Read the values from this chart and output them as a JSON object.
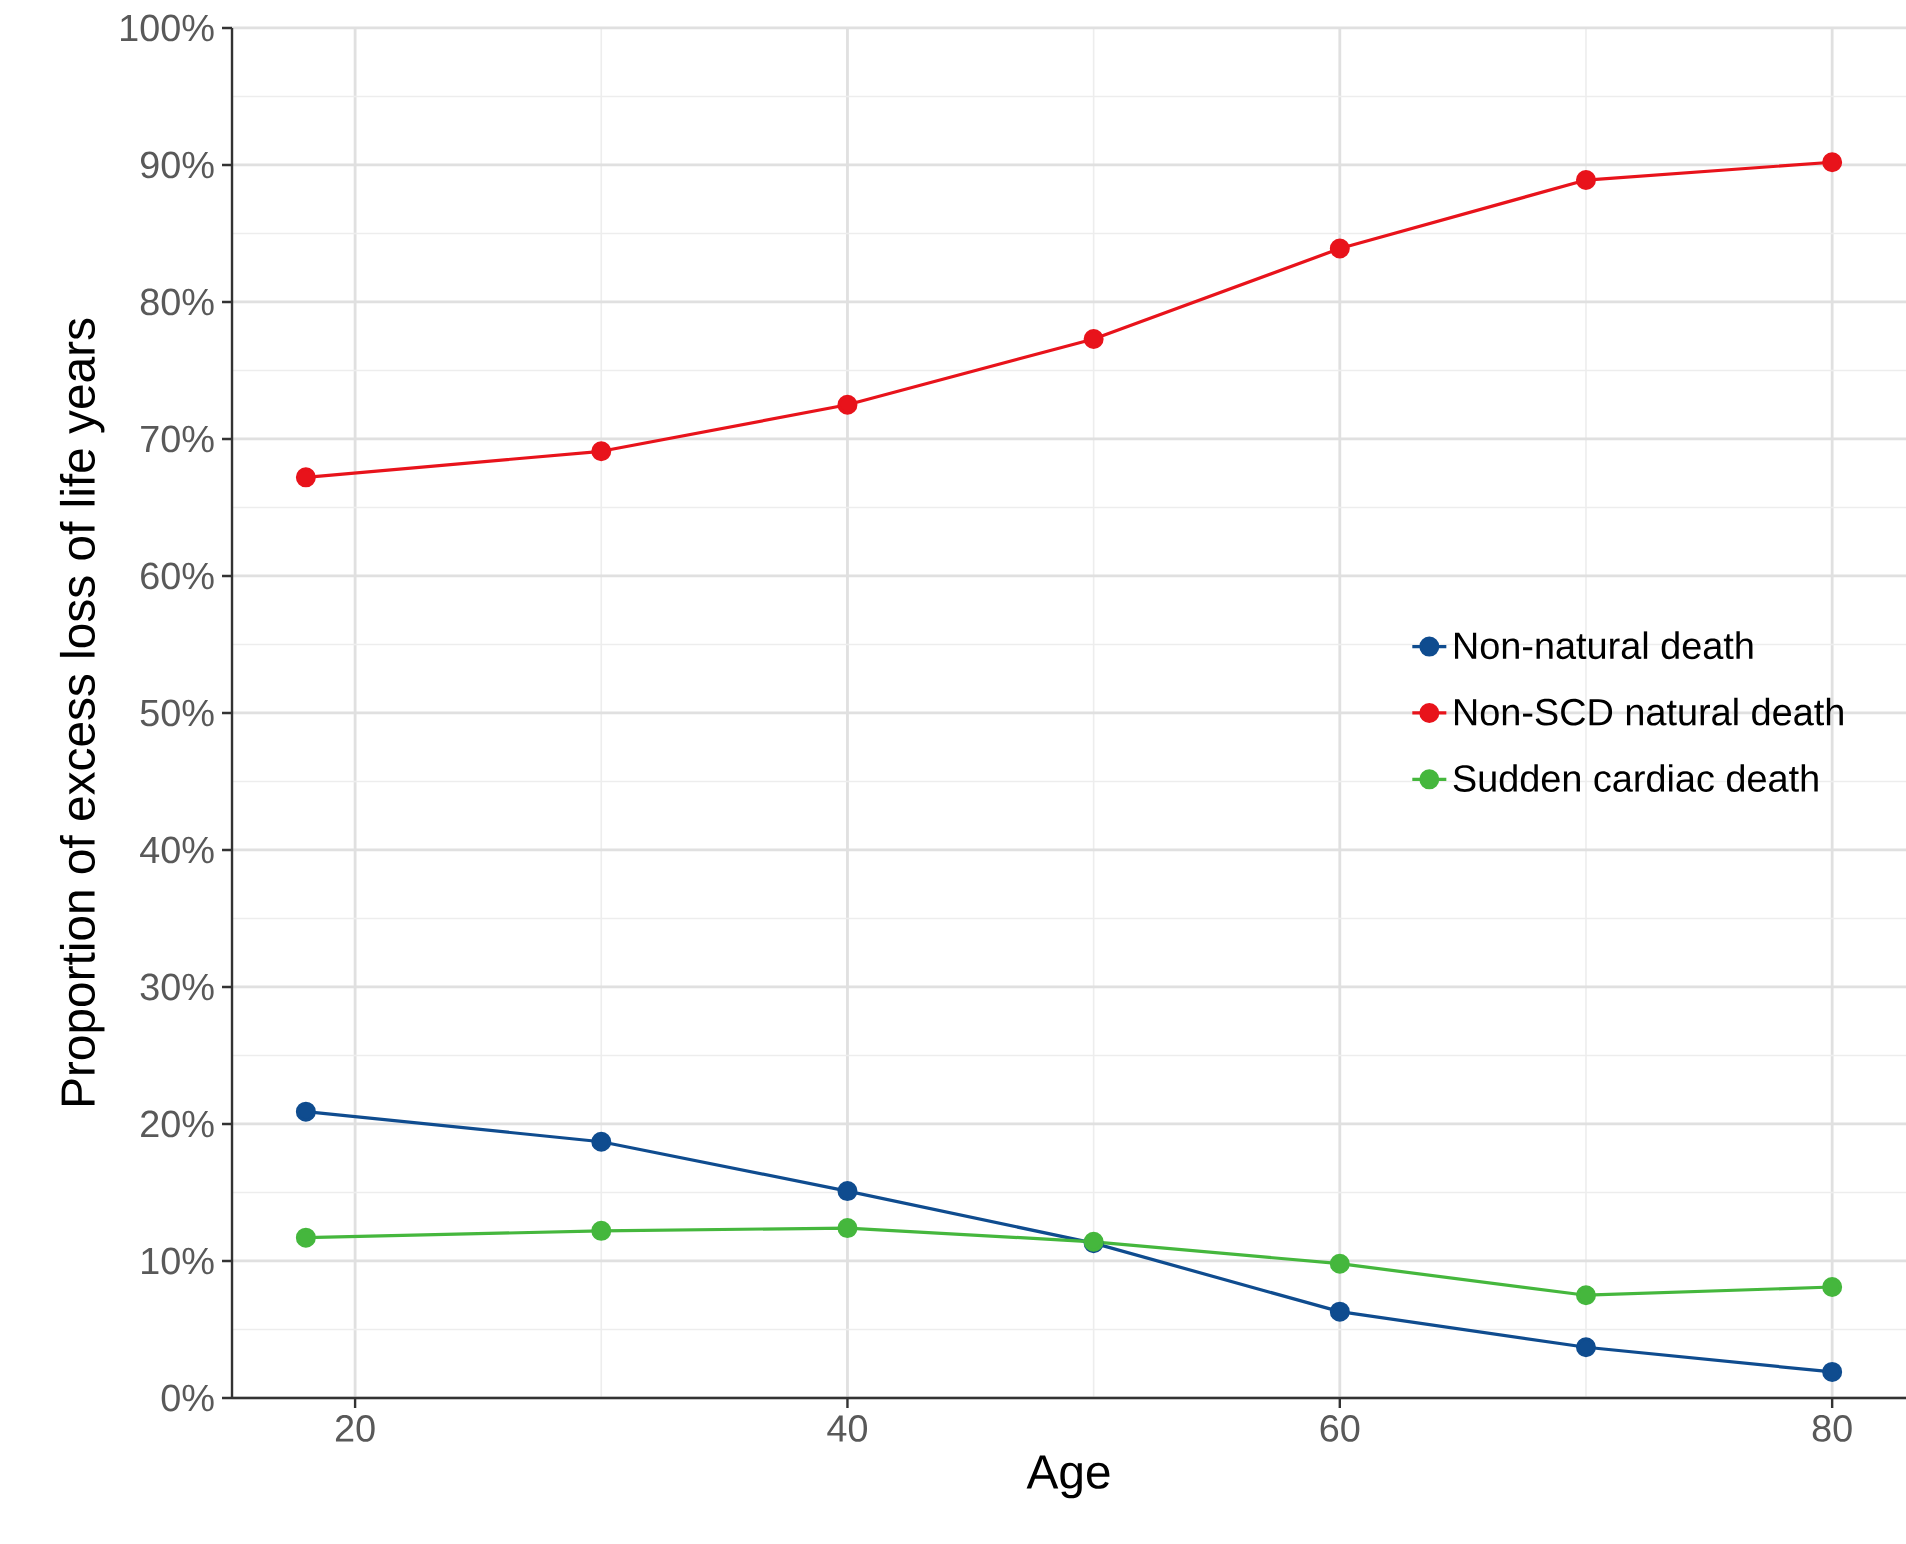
{
  "chart_data": {
    "type": "line",
    "xlabel": "Age",
    "ylabel": "Proportion of excess loss of life years",
    "x": [
      18,
      30,
      40,
      50,
      60,
      70,
      80
    ],
    "series": [
      {
        "name": "Non-natural death",
        "color": "#0f4c8f",
        "values": [
          20.9,
          18.7,
          15.1,
          11.3,
          6.3,
          3.7,
          1.9
        ]
      },
      {
        "name": "Non-SCD natural death",
        "color": "#e8131b",
        "values": [
          67.2,
          69.1,
          72.5,
          77.3,
          83.9,
          88.9,
          90.2
        ]
      },
      {
        "name": "Sudden cardiac death",
        "color": "#45b73d",
        "values": [
          11.7,
          12.2,
          12.4,
          11.4,
          9.8,
          7.5,
          8.1
        ]
      }
    ],
    "xlim": [
      15,
      83
    ],
    "ylim": [
      0,
      100
    ],
    "xticks": [
      20,
      40,
      60,
      80
    ],
    "yticks": [
      {
        "value": 0,
        "label": "0%"
      },
      {
        "value": 10,
        "label": "10%"
      },
      {
        "value": 20,
        "label": "20%"
      },
      {
        "value": 30,
        "label": "30%"
      },
      {
        "value": 40,
        "label": "40%"
      },
      {
        "value": 50,
        "label": "50%"
      },
      {
        "value": 60,
        "label": "60%"
      },
      {
        "value": 70,
        "label": "70%"
      },
      {
        "value": 80,
        "label": "80%"
      },
      {
        "value": 90,
        "label": "90%"
      },
      {
        "value": 100,
        "label": "100%"
      }
    ],
    "grid": true,
    "legend": "right",
    "marker": "circle",
    "line_style": "solid"
  }
}
